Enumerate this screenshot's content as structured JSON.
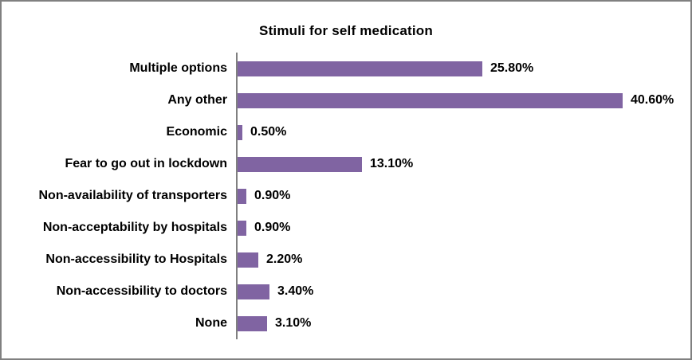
{
  "chart_data": {
    "type": "bar",
    "orientation": "horizontal",
    "title": "Stimuli for self medication",
    "categories": [
      "Multiple options",
      "Any other",
      "Economic",
      "Fear to go out in lockdown",
      "Non-availability of transporters",
      "Non-acceptability by hospitals",
      "Non-accessibility to Hospitals",
      "Non-accessibility to doctors",
      "None"
    ],
    "values": [
      25.8,
      40.6,
      0.5,
      13.1,
      0.9,
      0.9,
      2.2,
      3.4,
      3.1
    ],
    "value_labels": [
      "25.80%",
      "40.60%",
      "0.50%",
      "13.10%",
      "0.90%",
      "0.90%",
      "2.20%",
      "3.40%",
      "3.10%"
    ],
    "xlabel": "",
    "ylabel": "",
    "xlim": [
      0,
      45
    ],
    "grid": false,
    "legend": false,
    "data_labels": true,
    "bar_color": "#8064A2",
    "axis_line_color": "#808080",
    "border_color": "#808080",
    "text_color": "#000000",
    "background_color": "#FFFFFF"
  }
}
